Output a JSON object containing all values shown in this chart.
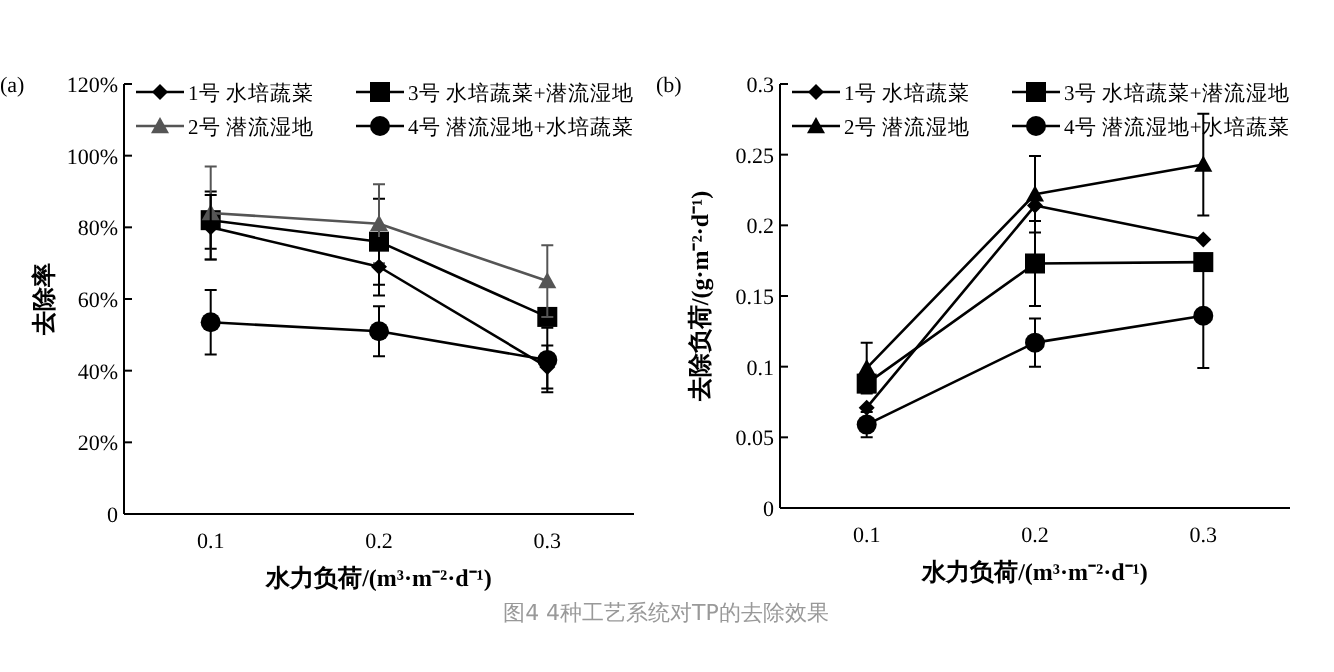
{
  "chart_data": [
    {
      "type": "line",
      "title": "(a)",
      "xlabel": "水力负荷/(m³·m⁻²·d⁻¹)",
      "ylabel": "去除率",
      "categories": [
        "0.1",
        "0.2",
        "0.3"
      ],
      "ylim": [
        0,
        120
      ],
      "yticks": [
        {
          "value": 0,
          "label": "0"
        },
        {
          "value": 20,
          "label": "20%"
        },
        {
          "value": 40,
          "label": "40%"
        },
        {
          "value": 60,
          "label": "60%"
        },
        {
          "value": 80,
          "label": "80%"
        },
        {
          "value": 100,
          "label": "100%"
        },
        {
          "value": 120,
          "label": "120%"
        }
      ],
      "legend": "top",
      "grid": false,
      "line_style": "solid",
      "annotations": [
        "图4 4种工艺系统对TP的去除效果"
      ],
      "series": [
        {
          "name": "1号 水培蔬菜",
          "color": "#000000",
          "marker": "diamond",
          "values": [
            80,
            69,
            41
          ],
          "errors": [
            9,
            8,
            6
          ]
        },
        {
          "name": "2号 潜流湿地",
          "color": "#555555",
          "marker": "triangle",
          "values": [
            84,
            81,
            65
          ],
          "errors": [
            13,
            11,
            10
          ]
        },
        {
          "name": "3号 水培蔬菜+潜流湿地",
          "color": "#000000",
          "marker": "square",
          "values": [
            82,
            76,
            55
          ],
          "errors": [
            8,
            12,
            null
          ]
        },
        {
          "name": "4号 潜流湿地+水培蔬菜",
          "color": "#000000",
          "marker": "circle",
          "values": [
            53.5,
            51,
            43
          ],
          "errors": [
            9,
            7,
            9
          ]
        }
      ]
    },
    {
      "type": "line",
      "title": "(b)",
      "xlabel": "水力负荷/(m³·m⁻²·d⁻¹)",
      "ylabel": "去除负荷/(g·m⁻²·d⁻¹)",
      "categories": [
        "0.1",
        "0.2",
        "0.3"
      ],
      "ylim": [
        0,
        0.3
      ],
      "yticks": [
        0,
        0.05,
        0.1,
        0.15,
        0.2,
        0.25,
        0.3
      ],
      "legend": "top",
      "grid": false,
      "line_style": "solid",
      "series": [
        {
          "name": "1号 水培蔬菜",
          "color": "#000000",
          "marker": "diamond",
          "values": [
            0.071,
            0.214,
            0.19
          ]
        },
        {
          "name": "2号 潜流湿地",
          "color": "#000000",
          "marker": "triangle",
          "values": [
            0.099,
            0.222,
            0.243
          ],
          "errors": [
            0.018,
            0.027,
            0.036
          ]
        },
        {
          "name": "3号 水培蔬菜+潜流湿地",
          "color": "#000000",
          "marker": "square",
          "values": [
            0.088,
            0.173,
            0.174
          ],
          "errors": [
            null,
            0.03,
            null
          ]
        },
        {
          "name": "4号 潜流湿地+水培蔬菜",
          "color": "#000000",
          "marker": "circle",
          "values": [
            0.059,
            0.117,
            0.136
          ],
          "errors": [
            0.009,
            0.017,
            0.037
          ]
        }
      ]
    }
  ]
}
